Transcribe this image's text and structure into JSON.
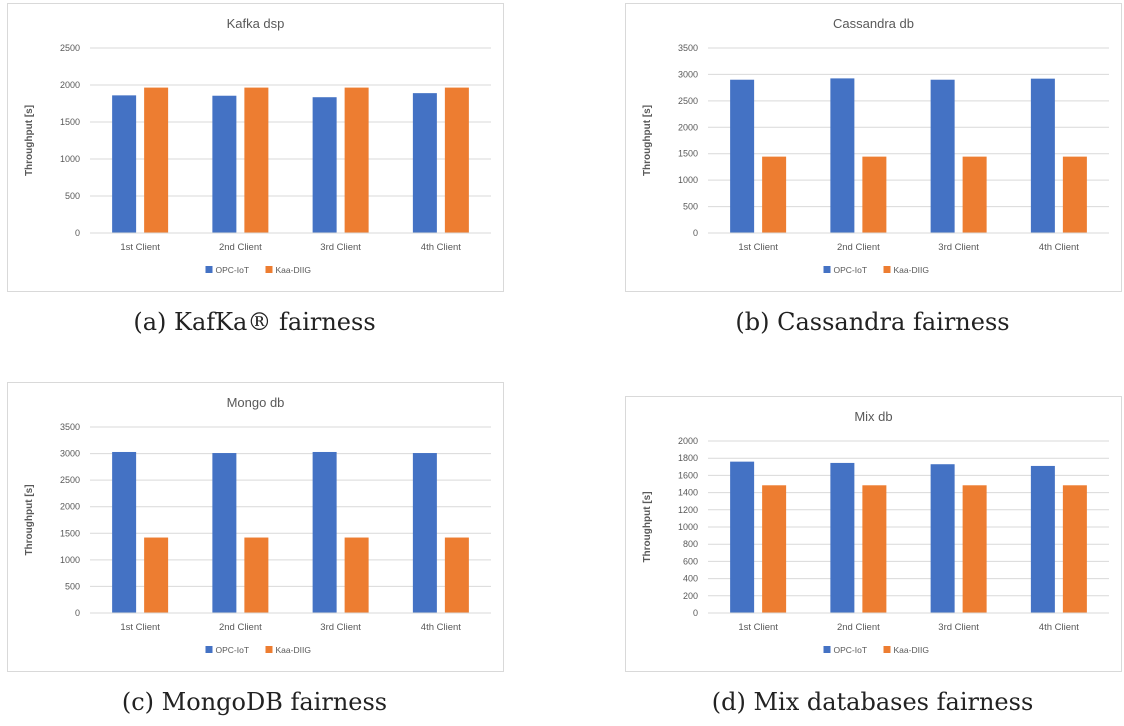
{
  "figure": {
    "captions": [
      "(a) KafKa® fairness",
      "(b) Cassandra fairness",
      "(c) MongoDB fairness",
      "(d) Mix databases fairness"
    ]
  },
  "colors": {
    "opc": "#4472c4",
    "kaa": "#ed7d31",
    "grid": "#d9d9d9",
    "text": "#595959"
  },
  "chart_data": [
    {
      "type": "bar",
      "title": "Kafka dsp",
      "ylabel": "Throughput [s]",
      "categories": [
        "1st Client",
        "2nd Client",
        "3rd Client",
        "4th Client"
      ],
      "series": [
        {
          "name": "OPC-IoT",
          "values": [
            1860,
            1855,
            1835,
            1890
          ]
        },
        {
          "name": "Kaa-DIIG",
          "values": [
            1965,
            1965,
            1965,
            1965
          ]
        }
      ],
      "ylim": [
        0,
        2500
      ],
      "yticks": [
        0,
        500,
        1000,
        1500,
        2000,
        2500
      ],
      "grid": true,
      "legend": "bottom"
    },
    {
      "type": "bar",
      "title": "Cassandra db",
      "ylabel": "Throughput [s]",
      "categories": [
        "1st Client",
        "2nd Client",
        "3rd Client",
        "4th Client"
      ],
      "series": [
        {
          "name": "OPC-IoT",
          "values": [
            2900,
            2925,
            2900,
            2920
          ]
        },
        {
          "name": "Kaa-DIIG",
          "values": [
            1445,
            1445,
            1445,
            1445
          ]
        }
      ],
      "ylim": [
        0,
        3500
      ],
      "yticks": [
        0,
        500,
        1000,
        1500,
        2000,
        2500,
        3000,
        3500
      ],
      "grid": true,
      "legend": "bottom"
    },
    {
      "type": "bar",
      "title": "Mongo db",
      "ylabel": "Throughput [s]",
      "categories": [
        "1st Client",
        "2nd Client",
        "3rd Client",
        "4th Client"
      ],
      "series": [
        {
          "name": "OPC-IoT",
          "values": [
            3030,
            3010,
            3030,
            3010
          ]
        },
        {
          "name": "Kaa-DIIG",
          "values": [
            1420,
            1420,
            1420,
            1420
          ]
        }
      ],
      "ylim": [
        0,
        3500
      ],
      "yticks": [
        0,
        500,
        1000,
        1500,
        2000,
        2500,
        3000,
        3500
      ],
      "grid": true,
      "legend": "bottom"
    },
    {
      "type": "bar",
      "title": "Mix db",
      "ylabel": "Throughput [s]",
      "categories": [
        "1st Client",
        "2nd Client",
        "3rd Client",
        "4th Client"
      ],
      "series": [
        {
          "name": "OPC-IoT",
          "values": [
            1760,
            1745,
            1730,
            1710
          ]
        },
        {
          "name": "Kaa-DIIG",
          "values": [
            1485,
            1485,
            1485,
            1485
          ]
        }
      ],
      "ylim": [
        0,
        2000
      ],
      "yticks": [
        0,
        200,
        400,
        600,
        800,
        1000,
        1200,
        1400,
        1600,
        1800,
        2000
      ],
      "grid": true,
      "legend": "bottom"
    }
  ]
}
